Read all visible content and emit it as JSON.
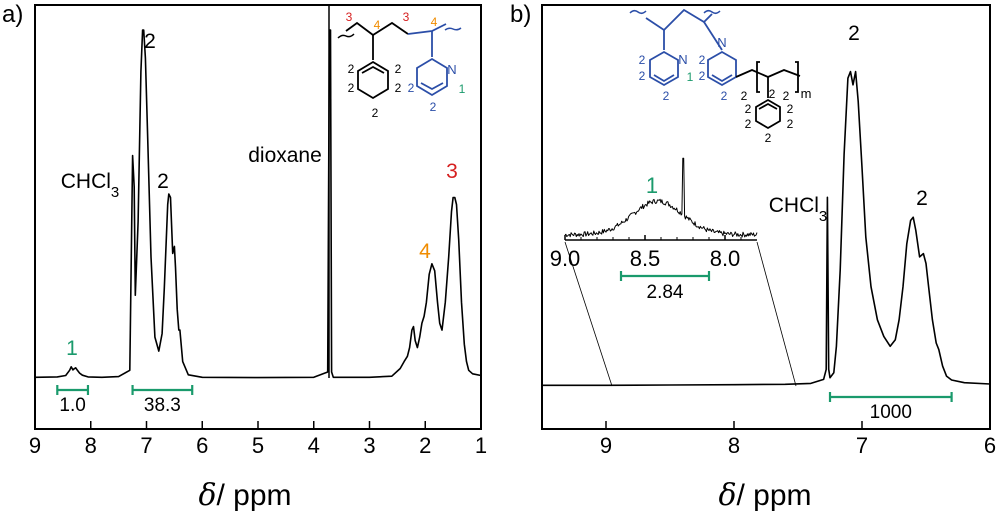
{
  "chart_data": [
    {
      "type": "line",
      "panel_label": "a)",
      "xlabel_symbol": "δ",
      "xlabel_unit": "/ ppm",
      "xlim": [
        9,
        1
      ],
      "xticks": [
        9,
        8,
        7,
        6,
        5,
        4,
        3,
        2,
        1
      ],
      "series": [
        {
          "x": [
            9.0,
            8.6,
            8.45,
            8.38,
            8.35,
            8.32,
            8.3,
            8.27,
            8.24,
            8.2,
            8.15,
            8.05,
            7.8,
            7.5,
            7.3,
            7.25,
            7.22,
            7.2,
            7.15,
            7.1,
            7.07,
            7.05,
            7.02,
            6.98,
            6.92,
            6.85,
            6.78,
            6.72,
            6.68,
            6.62,
            6.6,
            6.57,
            6.53,
            6.5,
            6.48,
            6.45,
            6.42,
            6.4,
            6.35,
            6.25,
            6.0,
            5.0,
            4.0,
            3.75,
            3.72,
            3.7,
            3.68,
            3.65,
            3.5,
            3.0,
            2.6,
            2.45,
            2.38,
            2.32,
            2.28,
            2.24,
            2.21,
            2.18,
            2.14,
            2.1,
            2.06,
            2.02,
            1.98,
            1.93,
            1.88,
            1.83,
            1.78,
            1.74,
            1.7,
            1.64,
            1.58,
            1.53,
            1.5,
            1.47,
            1.44,
            1.4,
            1.35,
            1.3,
            1.26,
            1.22,
            1.15,
            1.0
          ],
          "y": [
            0.5,
            0.6,
            1.0,
            2.5,
            3.5,
            2.6,
            2.9,
            3.2,
            2.5,
            1.7,
            1.1,
            0.6,
            0.5,
            0.7,
            2.5,
            64,
            55,
            24,
            45,
            88,
            100,
            100,
            92,
            70,
            35,
            12,
            8,
            13,
            26,
            50,
            53,
            52,
            36,
            38,
            32,
            20,
            14,
            14,
            5,
            1.2,
            0.5,
            0.4,
            0.5,
            2,
            100,
            100,
            2,
            0.5,
            0.5,
            0.5,
            0.8,
            3,
            5,
            6.5,
            9,
            14,
            15,
            11,
            9,
            12,
            16,
            18,
            22,
            30,
            33,
            31,
            22,
            16,
            14,
            22,
            35,
            48,
            52,
            52,
            50,
            40,
            22,
            10,
            5,
            2.5,
            1.5,
            1.0
          ]
        }
      ],
      "annotations": [
        {
          "text": "2",
          "x": 6.88,
          "y": 96
        },
        {
          "text": "2",
          "x": 6.6,
          "y": 57
        },
        {
          "text": "CHCl3",
          "x": 7.7,
          "y": 56
        },
        {
          "text": "dioxane",
          "x": 3.85,
          "y": 65
        },
        {
          "text": "1",
          "x": 8.3,
          "y": 7,
          "color": "#1a9a6c"
        },
        {
          "text": "4",
          "x": 1.87,
          "y": 37,
          "color": "#f08c00"
        },
        {
          "text": "3",
          "x": 1.44,
          "y": 59,
          "color": "#d62020"
        }
      ],
      "integrals": [
        {
          "from": 8.6,
          "to": 8.05,
          "value": "1.0"
        },
        {
          "from": 7.25,
          "to": 6.18,
          "value": "38.3"
        }
      ],
      "structure_labels": [
        "3",
        "4",
        "3",
        "4",
        "2",
        "2",
        "2",
        "2",
        "2",
        "2",
        "2",
        "N",
        "1"
      ]
    },
    {
      "type": "line",
      "panel_label": "b)",
      "xlabel_symbol": "δ",
      "xlabel_unit": "/ ppm",
      "xlim": [
        9.5,
        6
      ],
      "xticks": [
        9,
        8,
        7,
        6
      ],
      "series": [
        {
          "x": [
            9.5,
            9.0,
            8.5,
            8.0,
            7.6,
            7.4,
            7.3,
            7.28,
            7.27,
            7.26,
            7.25,
            7.22,
            7.2,
            7.17,
            7.14,
            7.11,
            7.09,
            7.07,
            7.05,
            7.03,
            7.0,
            6.97,
            6.93,
            6.88,
            6.83,
            6.78,
            6.74,
            6.71,
            6.68,
            6.65,
            6.62,
            6.6,
            6.58,
            6.55,
            6.52,
            6.5,
            6.48,
            6.45,
            6.42,
            6.4,
            6.37,
            6.34,
            6.3,
            6.2,
            6.0
          ],
          "y": [
            0.2,
            0.2,
            0.3,
            0.4,
            0.5,
            0.8,
            2.0,
            5,
            57,
            5,
            2.5,
            4,
            12,
            35,
            70,
            93,
            95,
            91,
            95,
            86,
            66,
            45,
            30,
            20,
            15,
            12,
            14,
            20,
            30,
            43,
            50,
            51,
            47,
            39,
            40,
            37,
            30,
            20,
            13,
            11,
            6,
            3,
            1.8,
            1.0,
            0.6
          ]
        }
      ],
      "inset": {
        "xlim": [
          9.0,
          7.8
        ],
        "xticks": [
          9.0,
          8.5,
          8.0
        ],
        "peak_label": "1",
        "integral": {
          "from": 8.65,
          "to": 8.1,
          "value": "2.84"
        }
      },
      "annotations": [
        {
          "text": "2",
          "x": 7.07,
          "y": 100
        },
        {
          "text": "2",
          "x": 6.57,
          "y": 55
        },
        {
          "text": "CHCl3",
          "x": 7.43,
          "y": 59
        }
      ],
      "integrals": [
        {
          "from": 7.25,
          "to": 6.3,
          "value": "1000"
        }
      ],
      "structure_labels": [
        "2",
        "2",
        "2",
        "2",
        "2",
        "N",
        "1",
        "N",
        "2",
        "2",
        "2",
        "2",
        "m",
        "2",
        "2",
        "2",
        "2",
        "2"
      ]
    }
  ]
}
